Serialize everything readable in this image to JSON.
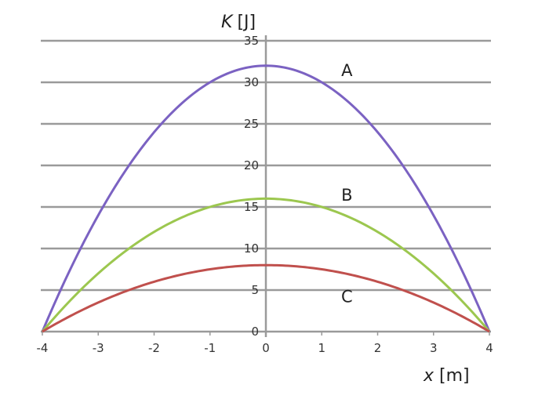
{
  "chart_data": {
    "type": "line",
    "title": "",
    "xlabel_var": "x",
    "xlabel_unit": "[m]",
    "ylabel_var": "K",
    "ylabel_unit": "[J]",
    "xlim": [
      -4,
      4
    ],
    "ylim": [
      0,
      35
    ],
    "x_ticks": [
      -4,
      -3,
      -2,
      -1,
      0,
      1,
      2,
      3,
      4
    ],
    "y_ticks": [
      0,
      5,
      10,
      15,
      20,
      25,
      30,
      35
    ],
    "grid": "horizontal",
    "legend": "inline labels",
    "x": [
      -4,
      -3,
      -2,
      -1,
      0,
      1,
      2,
      3,
      4
    ],
    "series": [
      {
        "name": "A",
        "color": "#7b62c2",
        "peak": 32,
        "values": [
          0,
          14,
          24,
          30,
          32,
          30,
          24,
          14,
          0
        ]
      },
      {
        "name": "B",
        "color": "#9cc74f",
        "peak": 16,
        "values": [
          0,
          7,
          12,
          15,
          16,
          15,
          12,
          7,
          0
        ]
      },
      {
        "name": "C",
        "color": "#c0504d",
        "peak": 8,
        "values": [
          0,
          3.5,
          6,
          7.5,
          8,
          7.5,
          6,
          3.5,
          0
        ]
      }
    ],
    "labels": [
      {
        "text": "A",
        "x": 1.45,
        "y": 31.5
      },
      {
        "text": "B",
        "x": 1.45,
        "y": 16.5
      },
      {
        "text": "C",
        "x": 1.45,
        "y": 4.3
      }
    ]
  }
}
